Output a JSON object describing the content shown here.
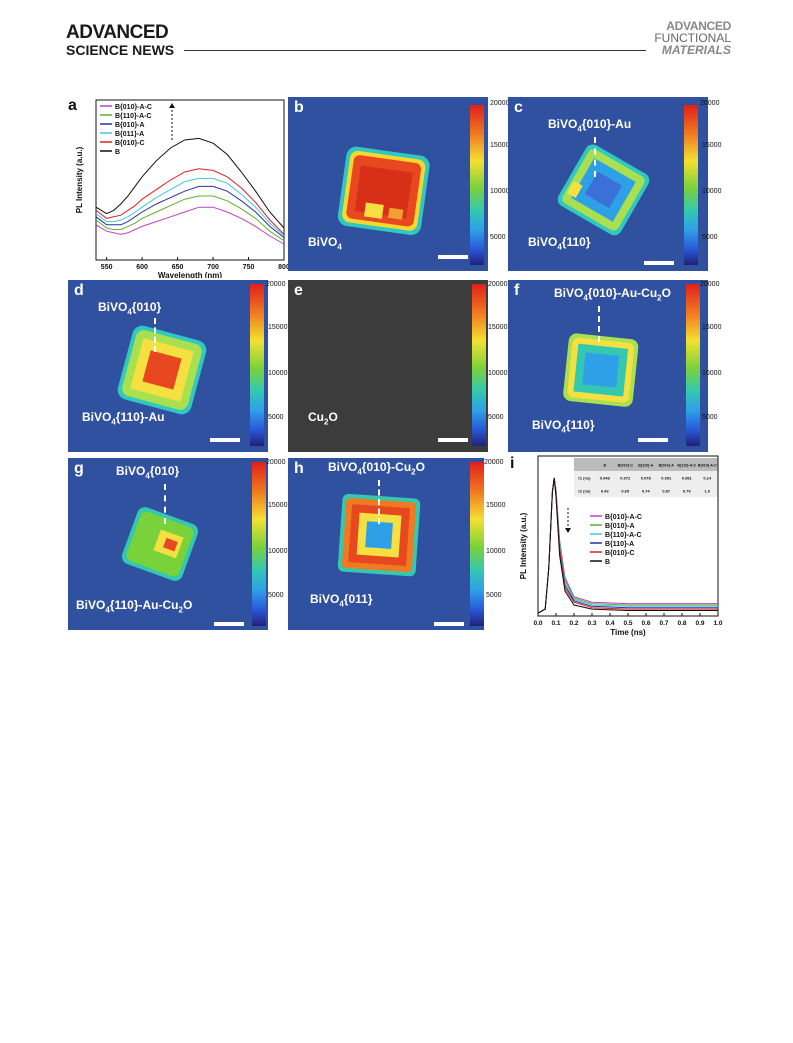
{
  "header": {
    "left_line1": "ADVANCED",
    "left_line2": "SCIENCE NEWS",
    "right_line1": "ADVANCED",
    "right_line2": "FUNCTIONAL",
    "right_line3": "MATERIALS"
  },
  "colors": {
    "map_background": "#3050a0",
    "dark_background": "#3c3c3c"
  },
  "colorbar_ticks": [
    "20000",
    "15000",
    "10000",
    "5000"
  ],
  "panels": {
    "a": {
      "label": "a"
    },
    "b": {
      "label": "b",
      "annotations": [
        "BiVO4"
      ]
    },
    "c": {
      "label": "c",
      "annotations": [
        "BiVO4{010}-Au",
        "BiVO4{110}"
      ]
    },
    "d": {
      "label": "d",
      "annotations": [
        "BiVO4{010}",
        "BiVO4{110}-Au"
      ]
    },
    "e": {
      "label": "e",
      "annotations": [
        "Cu2O"
      ]
    },
    "f": {
      "label": "f",
      "annotations": [
        "BiVO4{010}-Au-Cu2O",
        "BiVO4{110}"
      ]
    },
    "g": {
      "label": "g",
      "annotations": [
        "BiVO4{010}",
        "BiVO4{110}-Au-Cu2O"
      ]
    },
    "h": {
      "label": "h",
      "annotations": [
        "BiVO4{010}-Cu2O",
        "BiVO4{011}"
      ]
    },
    "i": {
      "label": "i"
    }
  },
  "chart_data": [
    {
      "type": "line",
      "panel": "a",
      "xlabel": "Wavelength (nm)",
      "ylabel": "PL Intensity (a.u.)",
      "xlim": [
        535,
        800
      ],
      "x_ticks": [
        550,
        600,
        650,
        700,
        750,
        800
      ],
      "x": [
        535,
        550,
        560,
        570,
        580,
        590,
        600,
        620,
        640,
        660,
        680,
        700,
        720,
        740,
        760,
        780,
        800
      ],
      "series": [
        {
          "name": "B{010}-A-C",
          "color": "#c040c0",
          "values": [
            0.22,
            0.18,
            0.17,
            0.16,
            0.17,
            0.19,
            0.21,
            0.24,
            0.27,
            0.3,
            0.33,
            0.33,
            0.3,
            0.26,
            0.21,
            0.15,
            0.1
          ]
        },
        {
          "name": "B{110}-A-C",
          "color": "#60b030",
          "values": [
            0.25,
            0.2,
            0.19,
            0.19,
            0.21,
            0.23,
            0.26,
            0.3,
            0.34,
            0.38,
            0.4,
            0.4,
            0.37,
            0.32,
            0.26,
            0.18,
            0.12
          ]
        },
        {
          "name": "B{010}-A",
          "color": "#2a30a0",
          "values": [
            0.27,
            0.22,
            0.22,
            0.22,
            0.24,
            0.27,
            0.3,
            0.35,
            0.39,
            0.43,
            0.46,
            0.46,
            0.43,
            0.37,
            0.3,
            0.21,
            0.14
          ]
        },
        {
          "name": "B{011}-A",
          "color": "#40c8e0",
          "values": [
            0.29,
            0.24,
            0.24,
            0.25,
            0.27,
            0.3,
            0.33,
            0.39,
            0.44,
            0.49,
            0.51,
            0.51,
            0.48,
            0.41,
            0.33,
            0.23,
            0.15
          ]
        },
        {
          "name": "B{010}-C",
          "color": "#e02020",
          "values": [
            0.31,
            0.26,
            0.27,
            0.28,
            0.31,
            0.34,
            0.38,
            0.44,
            0.5,
            0.55,
            0.57,
            0.56,
            0.52,
            0.45,
            0.36,
            0.25,
            0.16
          ]
        },
        {
          "name": "B",
          "color": "#111111",
          "values": [
            0.33,
            0.29,
            0.31,
            0.35,
            0.4,
            0.46,
            0.52,
            0.62,
            0.7,
            0.75,
            0.76,
            0.73,
            0.66,
            0.55,
            0.43,
            0.3,
            0.2
          ]
        }
      ]
    },
    {
      "type": "line",
      "panel": "i",
      "xlabel": "Time (ns)",
      "ylabel": "PL Intensity (a.u.)",
      "xlim": [
        0.0,
        1.0
      ],
      "x_ticks": [
        "0.0",
        "0.1",
        "0.2",
        "0.3",
        "0.4",
        "0.5",
        "0.6",
        "0.7",
        "0.8",
        "0.9",
        "1.0"
      ],
      "x": [
        0.0,
        0.04,
        0.06,
        0.08,
        0.09,
        0.1,
        0.12,
        0.15,
        0.2,
        0.3,
        0.5,
        0.7,
        1.0
      ],
      "series": [
        {
          "name": "B{010}-A-C",
          "color": "#c040c0",
          "values": [
            0.02,
            0.05,
            0.35,
            0.9,
            1.0,
            0.92,
            0.55,
            0.28,
            0.14,
            0.1,
            0.09,
            0.09,
            0.09
          ]
        },
        {
          "name": "B{010}-A",
          "color": "#60b030",
          "values": [
            0.02,
            0.05,
            0.35,
            0.9,
            1.0,
            0.91,
            0.53,
            0.26,
            0.13,
            0.09,
            0.08,
            0.08,
            0.08
          ]
        },
        {
          "name": "B{110}-A-C",
          "color": "#40c8e0",
          "values": [
            0.02,
            0.05,
            0.35,
            0.9,
            1.0,
            0.9,
            0.51,
            0.24,
            0.12,
            0.08,
            0.07,
            0.07,
            0.07
          ]
        },
        {
          "name": "B{110}-A",
          "color": "#2a30a0",
          "values": [
            0.02,
            0.05,
            0.35,
            0.9,
            1.0,
            0.89,
            0.49,
            0.22,
            0.11,
            0.07,
            0.06,
            0.06,
            0.06
          ]
        },
        {
          "name": "B{010}-C",
          "color": "#e02020",
          "values": [
            0.02,
            0.05,
            0.35,
            0.9,
            1.0,
            0.88,
            0.47,
            0.2,
            0.1,
            0.06,
            0.05,
            0.05,
            0.05
          ]
        },
        {
          "name": "B",
          "color": "#111111",
          "values": [
            0.02,
            0.05,
            0.35,
            0.9,
            1.0,
            0.86,
            0.44,
            0.18,
            0.08,
            0.05,
            0.04,
            0.04,
            0.04
          ]
        }
      ],
      "table": {
        "columns": [
          "",
          "B",
          "B{010}-C",
          "B{110}-A",
          "B{010}-A",
          "B{110}-A-C",
          "B{010}-A-C"
        ],
        "rows": [
          [
            "τ1 (ns)",
            "0.048",
            "0.072",
            "0.078",
            "0.091",
            "0.081",
            "0.14"
          ],
          [
            "τ2 (ns)",
            "0.43",
            "0.65",
            "0.74",
            "0.87",
            "0.79",
            "1.0"
          ]
        ]
      }
    }
  ]
}
